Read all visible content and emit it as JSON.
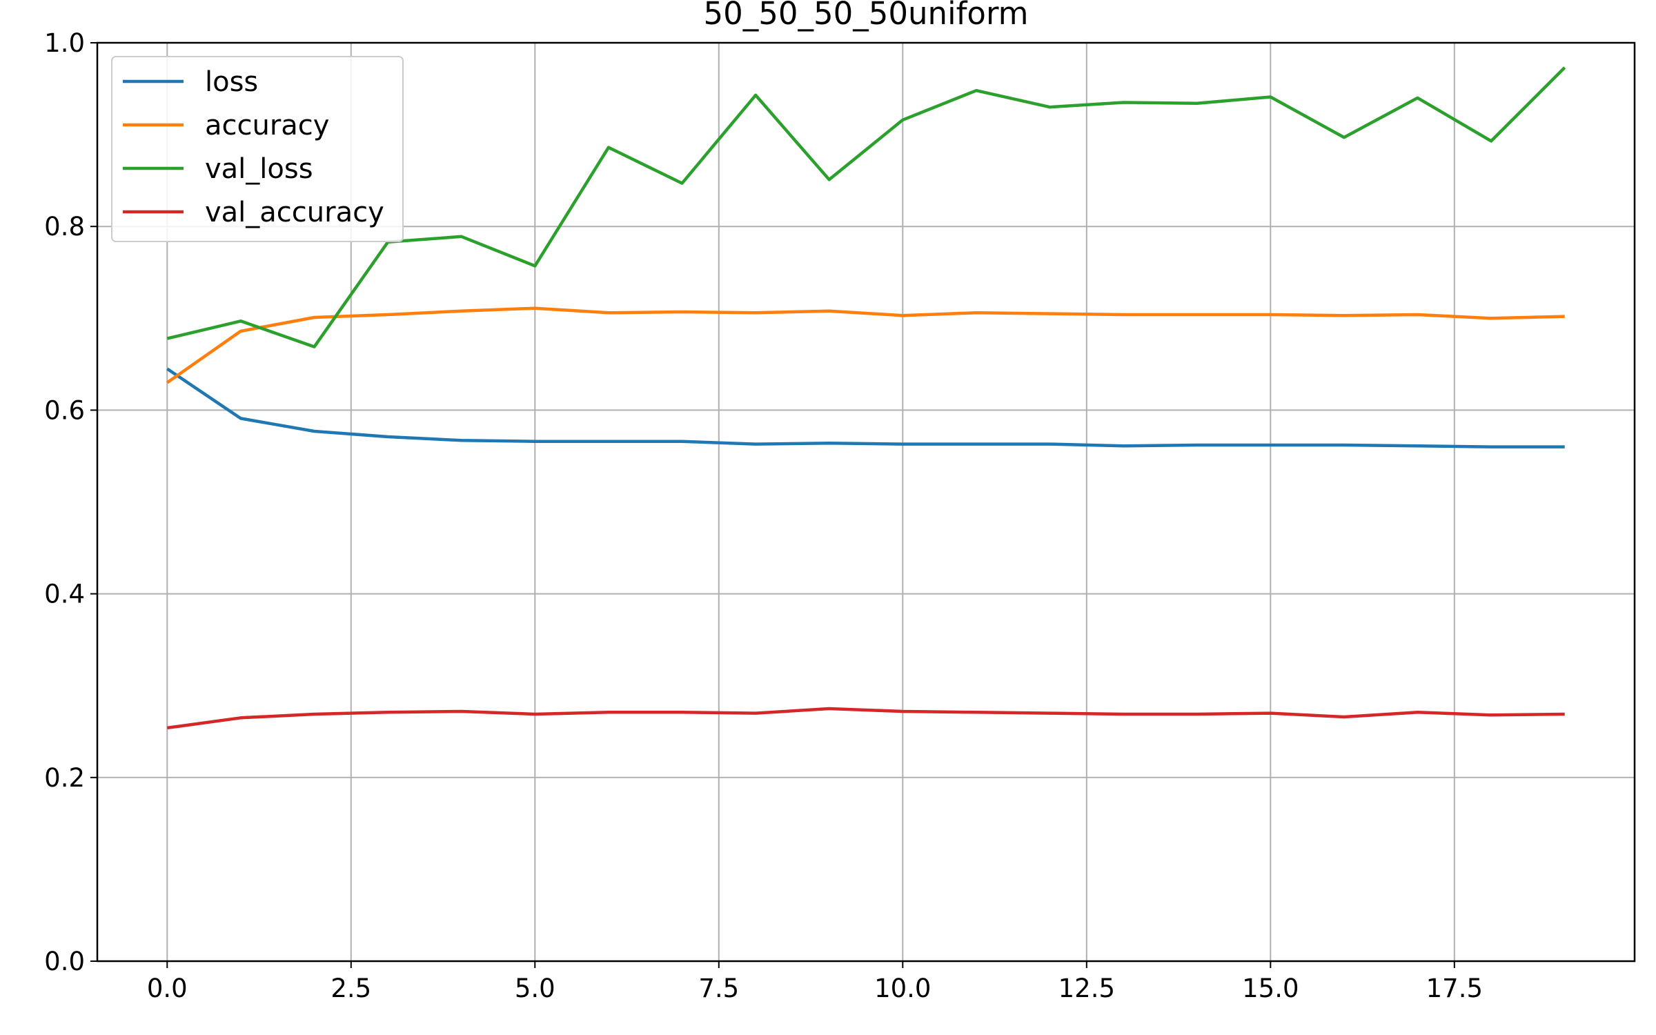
{
  "chart_data": {
    "type": "line",
    "title": "50_50_50_50uniform",
    "xlabel": "",
    "ylabel": "",
    "xlim": [
      -0.95,
      19.95
    ],
    "ylim": [
      0.0,
      1.0
    ],
    "x_ticks": [
      0.0,
      2.5,
      5.0,
      7.5,
      10.0,
      12.5,
      15.0,
      17.5
    ],
    "x_tick_labels": [
      "0.0",
      "2.5",
      "5.0",
      "7.5",
      "10.0",
      "12.5",
      "15.0",
      "17.5"
    ],
    "y_ticks": [
      0.0,
      0.2,
      0.4,
      0.6,
      0.8,
      1.0
    ],
    "y_tick_labels": [
      "0.0",
      "0.2",
      "0.4",
      "0.6",
      "0.8",
      "1.0"
    ],
    "grid": true,
    "legend_position": "upper-left",
    "x": [
      0,
      1,
      2,
      3,
      4,
      5,
      6,
      7,
      8,
      9,
      10,
      11,
      12,
      13,
      14,
      15,
      16,
      17,
      18,
      19
    ],
    "series": [
      {
        "name": "loss",
        "color": "#1f77b4",
        "values": [
          0.645,
          0.591,
          0.577,
          0.571,
          0.567,
          0.566,
          0.566,
          0.566,
          0.563,
          0.564,
          0.563,
          0.563,
          0.563,
          0.561,
          0.562,
          0.562,
          0.562,
          0.561,
          0.56,
          0.56
        ]
      },
      {
        "name": "accuracy",
        "color": "#ff7f0e",
        "values": [
          0.63,
          0.686,
          0.701,
          0.704,
          0.708,
          0.711,
          0.706,
          0.707,
          0.706,
          0.708,
          0.703,
          0.706,
          0.705,
          0.704,
          0.704,
          0.704,
          0.703,
          0.704,
          0.7,
          0.702
        ]
      },
      {
        "name": "val_loss",
        "color": "#2ca02c",
        "values": [
          0.678,
          0.697,
          0.669,
          0.783,
          0.789,
          0.757,
          0.886,
          0.847,
          0.943,
          0.851,
          0.916,
          0.948,
          0.93,
          0.935,
          0.934,
          0.941,
          0.897,
          0.94,
          0.893,
          0.973
        ]
      },
      {
        "name": "val_accuracy",
        "color": "#d62728",
        "values": [
          0.254,
          0.265,
          0.269,
          0.271,
          0.272,
          0.269,
          0.271,
          0.271,
          0.27,
          0.275,
          0.272,
          0.271,
          0.27,
          0.269,
          0.269,
          0.27,
          0.266,
          0.271,
          0.268,
          0.269
        ]
      }
    ]
  }
}
